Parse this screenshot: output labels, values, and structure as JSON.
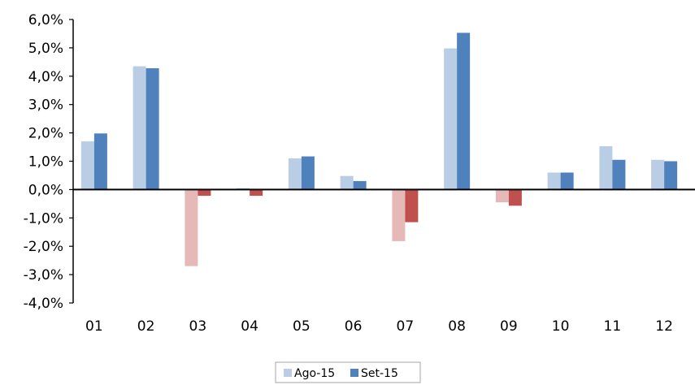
{
  "chart_data": {
    "type": "bar",
    "categories": [
      "01",
      "02",
      "03",
      "04",
      "05",
      "06",
      "07",
      "08",
      "09",
      "10",
      "11",
      "12"
    ],
    "series": [
      {
        "name": "Ago-15",
        "values": [
          1.7,
          4.35,
          -2.7,
          0.05,
          1.1,
          0.48,
          -1.82,
          4.98,
          -0.45,
          0.6,
          1.53,
          1.05
        ],
        "color_positive": "#b9cde5",
        "color_negative": "#e6b9b8"
      },
      {
        "name": "Set-15",
        "values": [
          1.98,
          4.28,
          -0.22,
          -0.22,
          1.17,
          0.3,
          -1.15,
          5.53,
          -0.57,
          0.6,
          1.05,
          1.0
        ],
        "color_positive": "#4f81bd",
        "color_negative": "#c0504d"
      }
    ],
    "ylim": [
      -4,
      6
    ],
    "yticks": [
      -4,
      -3,
      -2,
      -1,
      0,
      1,
      2,
      3,
      4,
      5,
      6
    ],
    "ytick_labels": [
      "-4,0%",
      "-3,0%",
      "-2,0%",
      "-1,0%",
      "0,0%",
      "1,0%",
      "2,0%",
      "3,0%",
      "4,0%",
      "5,0%",
      "6,0%"
    ],
    "title": "",
    "xlabel": "",
    "ylabel": "",
    "grid": false,
    "legend_position": "bottom"
  }
}
